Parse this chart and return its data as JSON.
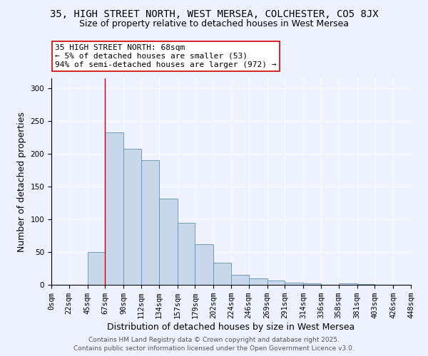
{
  "title": "35, HIGH STREET NORTH, WEST MERSEA, COLCHESTER, CO5 8JX",
  "subtitle": "Size of property relative to detached houses in West Mersea",
  "xlabel": "Distribution of detached houses by size in West Mersea",
  "ylabel": "Number of detached properties",
  "bin_edges": [
    0,
    22,
    45,
    67,
    90,
    112,
    134,
    157,
    179,
    202,
    224,
    246,
    269,
    291,
    314,
    336,
    358,
    381,
    403,
    426,
    448
  ],
  "bin_labels": [
    "0sqm",
    "22sqm",
    "45sqm",
    "67sqm",
    "90sqm",
    "112sqm",
    "134sqm",
    "157sqm",
    "179sqm",
    "202sqm",
    "224sqm",
    "246sqm",
    "269sqm",
    "291sqm",
    "314sqm",
    "336sqm",
    "358sqm",
    "381sqm",
    "403sqm",
    "426sqm",
    "448sqm"
  ],
  "bar_heights": [
    0,
    0,
    50,
    232,
    207,
    190,
    131,
    94,
    62,
    34,
    15,
    10,
    6,
    3,
    2,
    0,
    2,
    1,
    0,
    0
  ],
  "bar_color": "#c8d8ea",
  "bar_edge_color": "#6090b0",
  "vline_x": 67,
  "vline_color": "#cc0000",
  "annotation_text": "35 HIGH STREET NORTH: 68sqm\n← 5% of detached houses are smaller (53)\n94% of semi-detached houses are larger (972) →",
  "annotation_box_color": "white",
  "annotation_box_edge": "#cc0000",
  "ylim": [
    0,
    315
  ],
  "yticks": [
    0,
    50,
    100,
    150,
    200,
    250,
    300
  ],
  "bg_color": "#eef2ff",
  "footer1": "Contains HM Land Registry data © Crown copyright and database right 2025.",
  "footer2": "Contains public sector information licensed under the Open Government Licence v3.0.",
  "title_fontsize": 10,
  "subtitle_fontsize": 9,
  "axis_label_fontsize": 9,
  "tick_fontsize": 7.5,
  "annotation_fontsize": 8
}
